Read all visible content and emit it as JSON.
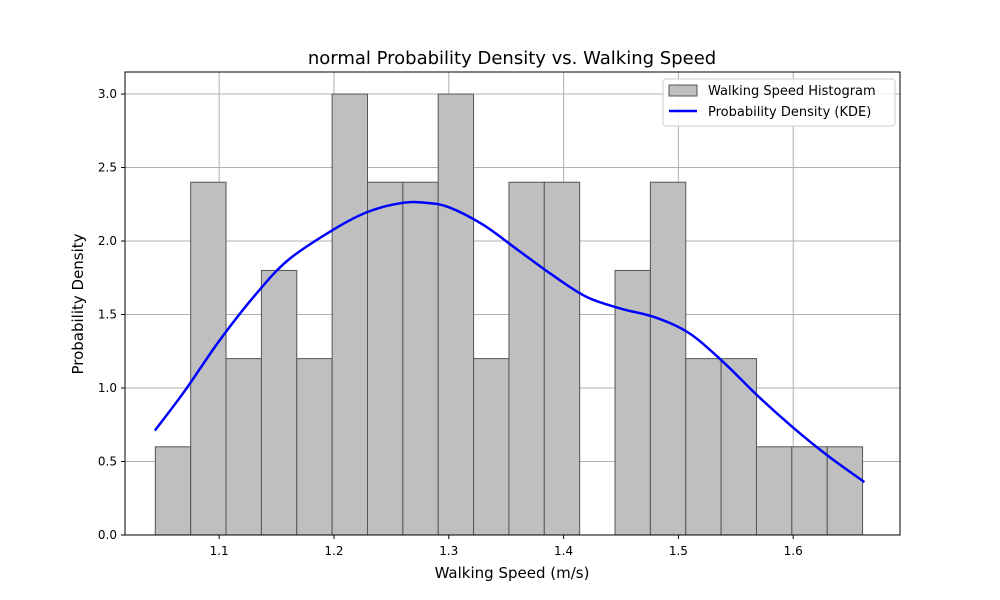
{
  "chart_data": {
    "type": "bar",
    "title": "normal Probability Density vs. Walking Speed",
    "xlabel": "Walking Speed (m/s)",
    "ylabel": "Probability Density",
    "xlim": [
      1.018,
      1.693
    ],
    "ylim": [
      0.0,
      3.15
    ],
    "xticks": [
      1.1,
      1.2,
      1.3,
      1.4,
      1.5,
      1.6
    ],
    "xtick_labels": [
      "1.1",
      "1.2",
      "1.3",
      "1.4",
      "1.5",
      "1.6"
    ],
    "yticks": [
      0.0,
      0.5,
      1.0,
      1.5,
      2.0,
      2.5,
      3.0
    ],
    "ytick_labels": [
      "0.0",
      "0.5",
      "1.0",
      "1.5",
      "2.0",
      "2.5",
      "3.0"
    ],
    "grid": true,
    "legend_position": "top-right",
    "histogram": {
      "name": "Walking Speed Histogram",
      "bin_edges": [
        1.0444,
        1.0752,
        1.106,
        1.1368,
        1.1676,
        1.1984,
        1.2292,
        1.26,
        1.2908,
        1.3216,
        1.3524,
        1.3832,
        1.414,
        1.4448,
        1.4756,
        1.5064,
        1.5372,
        1.568,
        1.5988,
        1.6296,
        1.6604
      ],
      "densities": [
        0.6,
        2.4,
        1.2,
        1.8,
        1.2,
        3.0,
        2.4,
        2.4,
        3.0,
        1.2,
        2.4,
        2.4,
        0.0,
        1.8,
        2.4,
        1.2,
        1.2,
        0.6,
        0.6,
        0.6
      ],
      "color": "#bfbfbf",
      "edge_color": "#555555"
    },
    "kde": {
      "name": "Probability Density (KDE)",
      "color": "#0000ff",
      "x": [
        1.044,
        1.07,
        1.1,
        1.13,
        1.16,
        1.2,
        1.23,
        1.26,
        1.28,
        1.3,
        1.33,
        1.36,
        1.39,
        1.42,
        1.45,
        1.48,
        1.51,
        1.54,
        1.57,
        1.6,
        1.63,
        1.662
      ],
      "y": [
        0.71,
        0.98,
        1.32,
        1.62,
        1.87,
        2.08,
        2.2,
        2.26,
        2.26,
        2.23,
        2.11,
        1.94,
        1.77,
        1.62,
        1.54,
        1.48,
        1.37,
        1.17,
        0.94,
        0.73,
        0.54,
        0.36
      ]
    }
  }
}
